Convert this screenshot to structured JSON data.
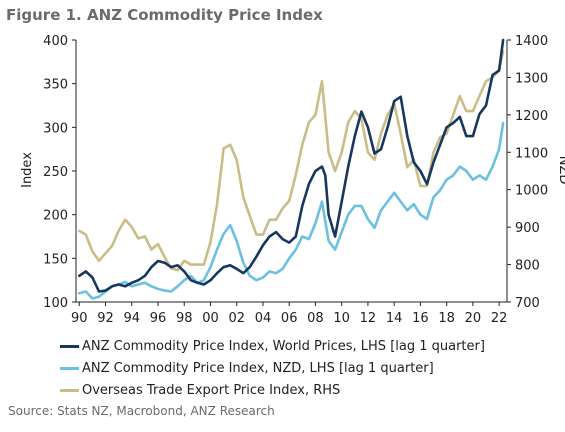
{
  "figure_title": "Figure 1.  ANZ Commodity Price Index",
  "source": "Source: Stats NZ, Macrobond, ANZ Research",
  "chart_data": {
    "type": "line",
    "ylabel_left": "Index",
    "ylabel_right": "NZD",
    "y_left": {
      "min": 100,
      "max": 400,
      "ticks": [
        100,
        150,
        200,
        250,
        300,
        350,
        400
      ]
    },
    "y_right": {
      "min": 700,
      "max": 1400,
      "ticks": [
        700,
        800,
        900,
        1000,
        1100,
        1200,
        1300,
        1400
      ]
    },
    "x": {
      "min": 1989.75,
      "max": 2022.6,
      "ticks": [
        1990,
        1992,
        1994,
        1996,
        1998,
        2000,
        2002,
        2004,
        2006,
        2008,
        2010,
        2012,
        2014,
        2016,
        2018,
        2020,
        2022
      ],
      "tick_labels": [
        "90",
        "92",
        "94",
        "96",
        "98",
        "00",
        "02",
        "04",
        "06",
        "08",
        "10",
        "12",
        "14",
        "16",
        "18",
        "20",
        "22"
      ]
    },
    "series": [
      {
        "name": "ANZ Commodity Price Index, World Prices, LHS [lag 1 quarter]",
        "axis": "left",
        "color": "#17375e",
        "points": [
          [
            1990.0,
            130
          ],
          [
            1990.5,
            135
          ],
          [
            1991.0,
            128
          ],
          [
            1991.5,
            112
          ],
          [
            1992.0,
            113
          ],
          [
            1992.5,
            118
          ],
          [
            1993.0,
            120
          ],
          [
            1993.5,
            118
          ],
          [
            1994.0,
            122
          ],
          [
            1994.5,
            125
          ],
          [
            1995.0,
            130
          ],
          [
            1995.5,
            140
          ],
          [
            1996.0,
            147
          ],
          [
            1996.5,
            145
          ],
          [
            1997.0,
            140
          ],
          [
            1997.5,
            142
          ],
          [
            1998.0,
            135
          ],
          [
            1998.5,
            125
          ],
          [
            1999.0,
            122
          ],
          [
            1999.5,
            120
          ],
          [
            2000.0,
            125
          ],
          [
            2000.5,
            133
          ],
          [
            2001.0,
            140
          ],
          [
            2001.5,
            142
          ],
          [
            2002.0,
            138
          ],
          [
            2002.5,
            133
          ],
          [
            2003.0,
            140
          ],
          [
            2003.5,
            152
          ],
          [
            2004.0,
            165
          ],
          [
            2004.5,
            175
          ],
          [
            2005.0,
            180
          ],
          [
            2005.5,
            172
          ],
          [
            2006.0,
            168
          ],
          [
            2006.5,
            175
          ],
          [
            2007.0,
            210
          ],
          [
            2007.5,
            235
          ],
          [
            2008.0,
            250
          ],
          [
            2008.5,
            255
          ],
          [
            2008.75,
            245
          ],
          [
            2009.0,
            200
          ],
          [
            2009.5,
            175
          ],
          [
            2010.0,
            215
          ],
          [
            2010.5,
            255
          ],
          [
            2011.0,
            290
          ],
          [
            2011.5,
            318
          ],
          [
            2012.0,
            300
          ],
          [
            2012.5,
            270
          ],
          [
            2013.0,
            275
          ],
          [
            2013.5,
            300
          ],
          [
            2014.0,
            330
          ],
          [
            2014.5,
            335
          ],
          [
            2015.0,
            290
          ],
          [
            2015.5,
            260
          ],
          [
            2016.0,
            250
          ],
          [
            2016.5,
            235
          ],
          [
            2017.0,
            260
          ],
          [
            2017.5,
            280
          ],
          [
            2018.0,
            300
          ],
          [
            2018.5,
            305
          ],
          [
            2019.0,
            312
          ],
          [
            2019.5,
            290
          ],
          [
            2020.0,
            290
          ],
          [
            2020.5,
            315
          ],
          [
            2021.0,
            325
          ],
          [
            2021.5,
            360
          ],
          [
            2022.0,
            365
          ],
          [
            2022.3,
            400
          ]
        ]
      },
      {
        "name": "ANZ Commodity Price Index, NZD, LHS [lag 1 quarter]",
        "axis": "left",
        "color": "#6cc0e0",
        "points": [
          [
            1990.0,
            110
          ],
          [
            1990.5,
            112
          ],
          [
            1991.0,
            104
          ],
          [
            1991.5,
            106
          ],
          [
            1992.0,
            112
          ],
          [
            1992.5,
            118
          ],
          [
            1993.0,
            120
          ],
          [
            1993.5,
            123
          ],
          [
            1994.0,
            118
          ],
          [
            1994.5,
            120
          ],
          [
            1995.0,
            122
          ],
          [
            1995.5,
            118
          ],
          [
            1996.0,
            115
          ],
          [
            1996.5,
            113
          ],
          [
            1997.0,
            112
          ],
          [
            1997.5,
            118
          ],
          [
            1998.0,
            125
          ],
          [
            1998.5,
            130
          ],
          [
            1999.0,
            122
          ],
          [
            1999.5,
            125
          ],
          [
            2000.0,
            140
          ],
          [
            2000.5,
            160
          ],
          [
            2001.0,
            178
          ],
          [
            2001.5,
            188
          ],
          [
            2002.0,
            170
          ],
          [
            2002.5,
            145
          ],
          [
            2003.0,
            130
          ],
          [
            2003.5,
            125
          ],
          [
            2004.0,
            128
          ],
          [
            2004.5,
            135
          ],
          [
            2005.0,
            133
          ],
          [
            2005.5,
            138
          ],
          [
            2006.0,
            150
          ],
          [
            2006.5,
            160
          ],
          [
            2007.0,
            175
          ],
          [
            2007.5,
            172
          ],
          [
            2008.0,
            190
          ],
          [
            2008.5,
            215
          ],
          [
            2009.0,
            170
          ],
          [
            2009.5,
            160
          ],
          [
            2010.0,
            180
          ],
          [
            2010.5,
            200
          ],
          [
            2011.0,
            210
          ],
          [
            2011.5,
            210
          ],
          [
            2012.0,
            195
          ],
          [
            2012.5,
            185
          ],
          [
            2013.0,
            205
          ],
          [
            2013.5,
            215
          ],
          [
            2014.0,
            225
          ],
          [
            2014.5,
            215
          ],
          [
            2015.0,
            205
          ],
          [
            2015.5,
            212
          ],
          [
            2016.0,
            200
          ],
          [
            2016.5,
            195
          ],
          [
            2017.0,
            220
          ],
          [
            2017.5,
            228
          ],
          [
            2018.0,
            240
          ],
          [
            2018.5,
            245
          ],
          [
            2019.0,
            255
          ],
          [
            2019.5,
            250
          ],
          [
            2020.0,
            240
          ],
          [
            2020.5,
            245
          ],
          [
            2021.0,
            240
          ],
          [
            2021.5,
            255
          ],
          [
            2022.0,
            275
          ],
          [
            2022.3,
            305
          ]
        ]
      },
      {
        "name": "Overseas Trade Export Price Index, RHS",
        "axis": "right",
        "color": "#c9bd88",
        "points": [
          [
            1990.0,
            890
          ],
          [
            1990.5,
            880
          ],
          [
            1991.0,
            835
          ],
          [
            1991.5,
            810
          ],
          [
            1992.0,
            830
          ],
          [
            1992.5,
            850
          ],
          [
            1993.0,
            890
          ],
          [
            1993.5,
            920
          ],
          [
            1994.0,
            900
          ],
          [
            1994.5,
            870
          ],
          [
            1995.0,
            875
          ],
          [
            1995.5,
            840
          ],
          [
            1996.0,
            855
          ],
          [
            1996.5,
            820
          ],
          [
            1997.0,
            790
          ],
          [
            1997.5,
            785
          ],
          [
            1998.0,
            810
          ],
          [
            1998.5,
            800
          ],
          [
            1999.0,
            800
          ],
          [
            1999.5,
            800
          ],
          [
            2000.0,
            860
          ],
          [
            2000.5,
            960
          ],
          [
            2001.0,
            1110
          ],
          [
            2001.5,
            1120
          ],
          [
            2002.0,
            1080
          ],
          [
            2002.5,
            980
          ],
          [
            2003.0,
            930
          ],
          [
            2003.5,
            880
          ],
          [
            2004.0,
            880
          ],
          [
            2004.5,
            920
          ],
          [
            2005.0,
            920
          ],
          [
            2005.5,
            950
          ],
          [
            2006.0,
            970
          ],
          [
            2006.5,
            1040
          ],
          [
            2007.0,
            1120
          ],
          [
            2007.5,
            1180
          ],
          [
            2008.0,
            1200
          ],
          [
            2008.5,
            1290
          ],
          [
            2009.0,
            1100
          ],
          [
            2009.5,
            1050
          ],
          [
            2010.0,
            1100
          ],
          [
            2010.5,
            1180
          ],
          [
            2011.0,
            1210
          ],
          [
            2011.5,
            1190
          ],
          [
            2012.0,
            1100
          ],
          [
            2012.5,
            1080
          ],
          [
            2013.0,
            1150
          ],
          [
            2013.5,
            1200
          ],
          [
            2014.0,
            1230
          ],
          [
            2014.5,
            1150
          ],
          [
            2015.0,
            1060
          ],
          [
            2015.5,
            1080
          ],
          [
            2016.0,
            1010
          ],
          [
            2016.5,
            1010
          ],
          [
            2017.0,
            1100
          ],
          [
            2017.5,
            1140
          ],
          [
            2018.0,
            1150
          ],
          [
            2018.5,
            1200
          ],
          [
            2019.0,
            1250
          ],
          [
            2019.5,
            1210
          ],
          [
            2020.0,
            1210
          ],
          [
            2020.5,
            1250
          ],
          [
            2021.0,
            1290
          ],
          [
            2021.5,
            1300
          ],
          [
            2022.0,
            1320
          ],
          [
            2022.3,
            1370
          ]
        ]
      }
    ]
  }
}
